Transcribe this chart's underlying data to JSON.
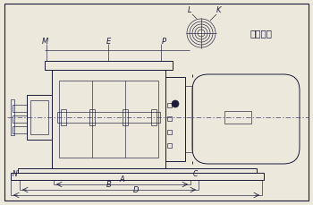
{
  "bg_color": "#ede8dc",
  "line_color": "#1a1a3a",
  "fan_label_L": "L",
  "fan_label_K": "K",
  "text_suction": "吸排气口",
  "dim_A": "A",
  "dim_B": "B",
  "dim_C": "C",
  "dim_D": "D",
  "dim_M": "M",
  "dim_E": "E",
  "dim_P": "P",
  "dim_N": "N",
  "figsize": [
    3.5,
    2.3
  ],
  "dpi": 100
}
